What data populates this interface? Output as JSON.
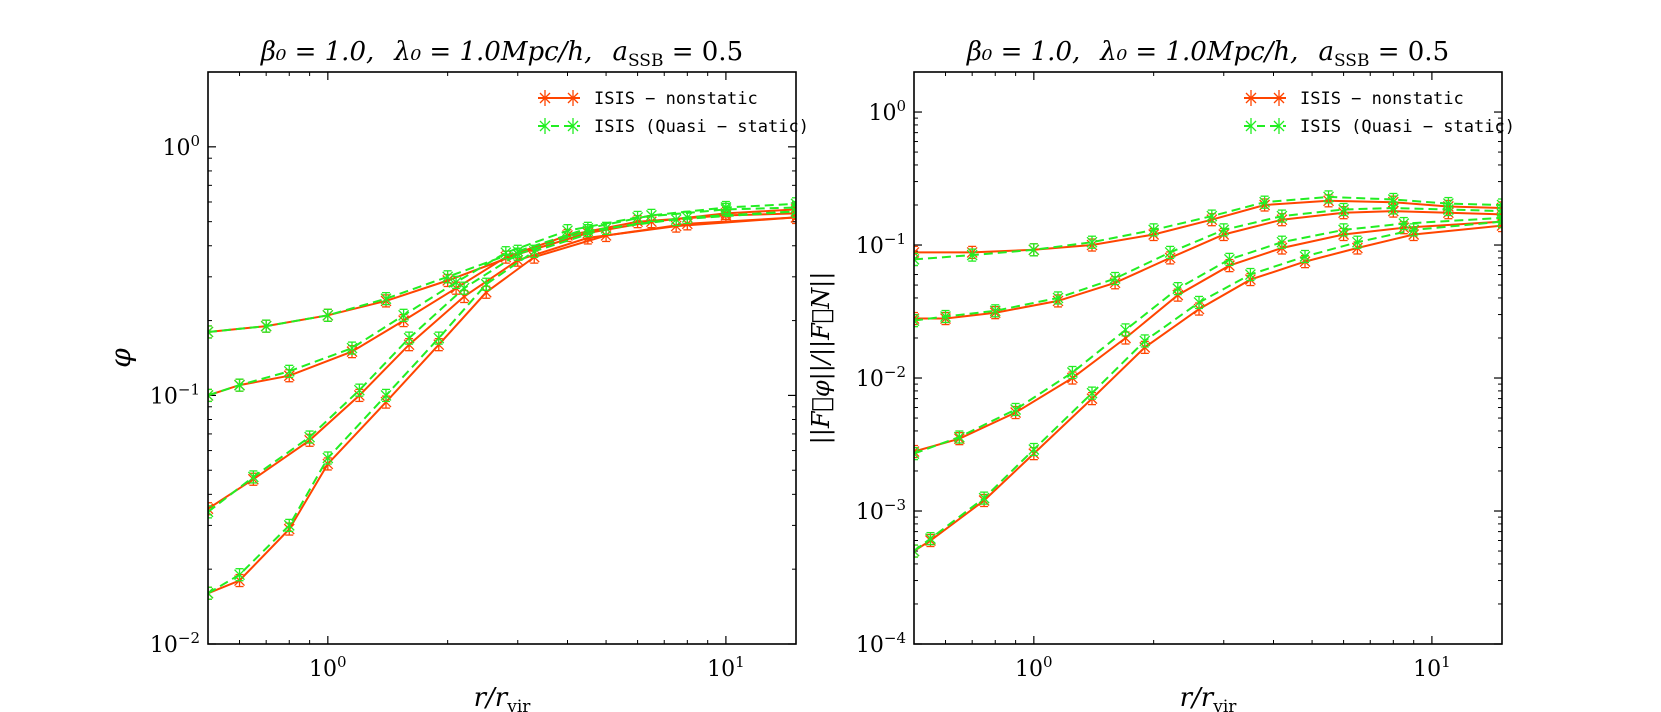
{
  "chart_data": [
    {
      "type": "line",
      "title": "β₀ = 1.0,   λ₀ = 1.0Mpc/h,   a_SSB = 0.5",
      "title_parts": {
        "beta": "β₀ = 1.0,",
        "lambda": "λ₀ = 1.0Mpc/h,",
        "assb": "a",
        "assb_sub": "SSB",
        "assb_val": " = 0.5"
      },
      "xlabel": "r/r",
      "xlabel_sub": "vir",
      "ylabel": "φ",
      "xscale": "log",
      "yscale": "log",
      "xlim": [
        0.5,
        15
      ],
      "ylim": [
        0.01,
        2.0
      ],
      "xticks": [
        {
          "value": 1,
          "label": "10",
          "exp": "0"
        },
        {
          "value": 10,
          "label": "10",
          "exp": "1"
        }
      ],
      "yticks": [
        {
          "value": 0.01,
          "label": "10",
          "exp": "−2"
        },
        {
          "value": 0.1,
          "label": "10",
          "exp": "−1"
        },
        {
          "value": 1,
          "label": "10",
          "exp": "0"
        }
      ],
      "legend": {
        "position": "top-right",
        "entries": [
          {
            "label": "ISIS − nonstatic",
            "color": "#ff4500",
            "dash": "solid"
          },
          {
            "label": "ISIS (Quasi − static)",
            "color": "#22ee22",
            "dash": "dashed"
          }
        ]
      },
      "series": [
        {
          "name": "ISIS − nonstatic",
          "color": "#ff4500",
          "dash": "solid",
          "curves": [
            {
              "x": [
                0.5,
                0.7,
                1.0,
                1.4,
                2.0,
                3.0,
                4.5,
                6.5,
                10,
                15
              ],
              "y": [
                0.18,
                0.19,
                0.21,
                0.24,
                0.29,
                0.37,
                0.45,
                0.5,
                0.54,
                0.56
              ]
            },
            {
              "x": [
                0.5,
                0.6,
                0.8,
                1.15,
                1.55,
                2.1,
                2.8,
                4.0,
                6.0,
                10,
                15
              ],
              "y": [
                0.1,
                0.11,
                0.12,
                0.15,
                0.2,
                0.27,
                0.36,
                0.44,
                0.5,
                0.53,
                0.54
              ]
            },
            {
              "x": [
                0.5,
                0.65,
                0.9,
                1.2,
                1.6,
                2.2,
                3.0,
                4.5,
                7.5,
                15
              ],
              "y": [
                0.035,
                0.046,
                0.066,
                0.1,
                0.16,
                0.25,
                0.35,
                0.43,
                0.48,
                0.52
              ]
            },
            {
              "x": [
                0.5,
                0.6,
                0.8,
                1.0,
                1.4,
                1.9,
                2.5,
                3.3,
                5.0,
                8.0,
                15
              ],
              "y": [
                0.016,
                0.018,
                0.029,
                0.053,
                0.094,
                0.16,
                0.26,
                0.36,
                0.44,
                0.49,
                0.52
              ]
            }
          ]
        },
        {
          "name": "ISIS (Quasi − static)",
          "color": "#22ee22",
          "dash": "dashed",
          "curves": [
            {
              "x": [
                0.5,
                0.7,
                1.0,
                1.4,
                2.0,
                3.0,
                4.5,
                6.5,
                10,
                15
              ],
              "y": [
                0.18,
                0.19,
                0.21,
                0.245,
                0.3,
                0.38,
                0.47,
                0.53,
                0.57,
                0.59
              ]
            },
            {
              "x": [
                0.5,
                0.6,
                0.8,
                1.15,
                1.55,
                2.1,
                2.8,
                4.0,
                6.0,
                10,
                15
              ],
              "y": [
                0.1,
                0.11,
                0.125,
                0.155,
                0.21,
                0.285,
                0.375,
                0.46,
                0.52,
                0.56,
                0.57
              ]
            },
            {
              "x": [
                0.5,
                0.65,
                0.9,
                1.2,
                1.6,
                2.2,
                3.0,
                4.5,
                7.5,
                15
              ],
              "y": [
                0.034,
                0.047,
                0.068,
                0.105,
                0.17,
                0.27,
                0.37,
                0.46,
                0.51,
                0.55
              ]
            },
            {
              "x": [
                0.5,
                0.6,
                0.8,
                1.0,
                1.4,
                1.9,
                2.5,
                3.3,
                5.0,
                8.0,
                15
              ],
              "y": [
                0.016,
                0.019,
                0.03,
                0.056,
                0.1,
                0.17,
                0.28,
                0.38,
                0.47,
                0.52,
                0.55
              ]
            }
          ]
        }
      ]
    },
    {
      "type": "line",
      "title": "β₀ = 1.0,   λ₀ = 1.0Mpc/h,   a_SSB = 0.5",
      "title_parts": {
        "beta": "β₀ = 1.0,",
        "lambda": "λ₀ = 1.0Mpc/h,",
        "assb": "a",
        "assb_sub": "SSB",
        "assb_val": " = 0.5"
      },
      "xlabel": "r/r",
      "xlabel_sub": "vir",
      "ylabel": "||F⃗φ||/||F⃗N||",
      "xscale": "log",
      "yscale": "log",
      "xlim": [
        0.5,
        15
      ],
      "ylim": [
        0.0001,
        2.0
      ],
      "xticks": [
        {
          "value": 1,
          "label": "10",
          "exp": "0"
        },
        {
          "value": 10,
          "label": "10",
          "exp": "1"
        }
      ],
      "yticks": [
        {
          "value": 0.0001,
          "label": "10",
          "exp": "−4"
        },
        {
          "value": 0.001,
          "label": "10",
          "exp": "−3"
        },
        {
          "value": 0.01,
          "label": "10",
          "exp": "−2"
        },
        {
          "value": 0.1,
          "label": "10",
          "exp": "−1"
        },
        {
          "value": 1,
          "label": "10",
          "exp": "0"
        }
      ],
      "legend": {
        "position": "top-right",
        "entries": [
          {
            "label": "ISIS − nonstatic",
            "color": "#ff4500",
            "dash": "solid"
          },
          {
            "label": "ISIS (Quasi − static)",
            "color": "#22ee22",
            "dash": "dashed"
          }
        ]
      },
      "series": [
        {
          "name": "ISIS − nonstatic",
          "color": "#ff4500",
          "dash": "solid",
          "curves": [
            {
              "x": [
                0.5,
                0.7,
                1.0,
                1.4,
                2.0,
                2.8,
                3.8,
                5.5,
                8.0,
                11,
                15
              ],
              "y": [
                0.088,
                0.088,
                0.092,
                0.1,
                0.12,
                0.155,
                0.2,
                0.215,
                0.21,
                0.195,
                0.19
              ]
            },
            {
              "x": [
                0.5,
                0.6,
                0.8,
                1.15,
                1.6,
                2.2,
                3.0,
                4.2,
                6.0,
                8.0,
                11,
                15
              ],
              "y": [
                0.028,
                0.028,
                0.031,
                0.038,
                0.052,
                0.08,
                0.12,
                0.155,
                0.175,
                0.18,
                0.175,
                0.17
              ]
            },
            {
              "x": [
                0.5,
                0.65,
                0.9,
                1.25,
                1.7,
                2.3,
                3.1,
                4.2,
                6.0,
                8.5,
                15
              ],
              "y": [
                0.0028,
                0.0035,
                0.0055,
                0.01,
                0.02,
                0.042,
                0.07,
                0.095,
                0.12,
                0.135,
                0.15
              ]
            },
            {
              "x": [
                0.5,
                0.55,
                0.75,
                1.0,
                1.4,
                1.9,
                2.6,
                3.5,
                4.8,
                6.5,
                9.0,
                15
              ],
              "y": [
                0.0005,
                0.0006,
                0.0012,
                0.0027,
                0.007,
                0.017,
                0.033,
                0.055,
                0.075,
                0.095,
                0.12,
                0.14
              ]
            }
          ]
        },
        {
          "name": "ISIS (Quasi − static)",
          "color": "#22ee22",
          "dash": "dashed",
          "curves": [
            {
              "x": [
                0.5,
                0.7,
                1.0,
                1.4,
                2.0,
                2.8,
                3.8,
                5.5,
                8.0,
                11,
                15
              ],
              "y": [
                0.078,
                0.084,
                0.092,
                0.105,
                0.13,
                0.165,
                0.21,
                0.23,
                0.22,
                0.205,
                0.2
              ]
            },
            {
              "x": [
                0.5,
                0.6,
                0.8,
                1.15,
                1.6,
                2.2,
                3.0,
                4.2,
                6.0,
                8.0,
                11,
                15
              ],
              "y": [
                0.027,
                0.029,
                0.032,
                0.04,
                0.056,
                0.088,
                0.13,
                0.165,
                0.185,
                0.19,
                0.185,
                0.18
              ]
            },
            {
              "x": [
                0.5,
                0.65,
                0.9,
                1.25,
                1.7,
                2.3,
                3.1,
                4.2,
                6.0,
                8.5,
                15
              ],
              "y": [
                0.0027,
                0.0036,
                0.0058,
                0.011,
                0.023,
                0.047,
                0.078,
                0.105,
                0.13,
                0.145,
                0.16
              ]
            },
            {
              "x": [
                0.5,
                0.55,
                0.75,
                1.0,
                1.4,
                1.9,
                2.6,
                3.5,
                4.8,
                6.5,
                9.0,
                15
              ],
              "y": [
                0.0005,
                0.00062,
                0.00125,
                0.0029,
                0.0077,
                0.019,
                0.037,
                0.06,
                0.082,
                0.105,
                0.13,
                0.15
              ]
            }
          ]
        }
      ]
    }
  ]
}
